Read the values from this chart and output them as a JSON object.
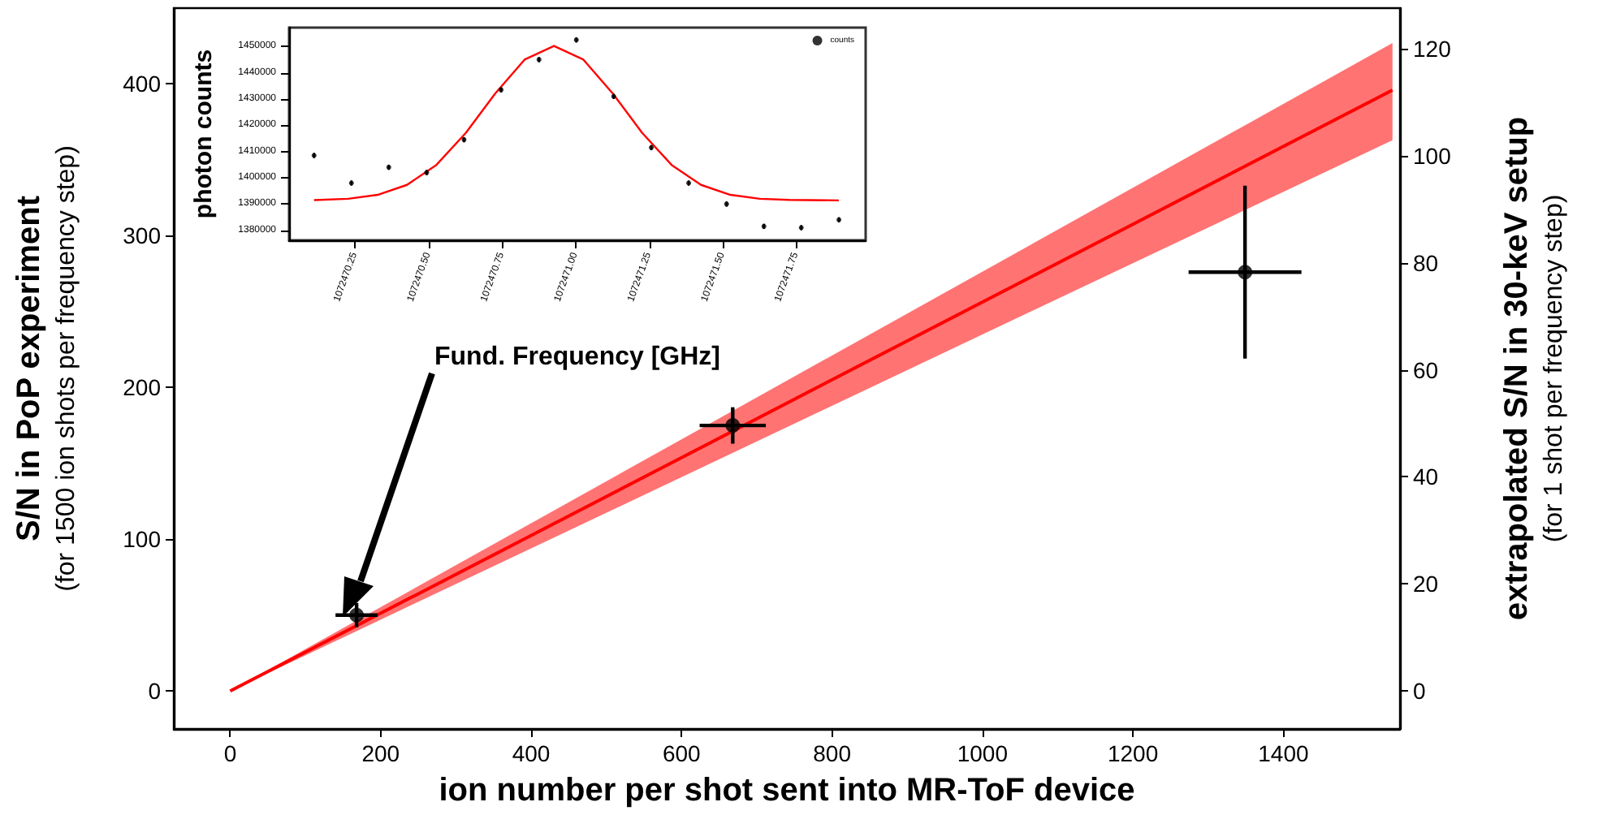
{
  "chart_data": [
    {
      "type": "scatter",
      "xlabel": "ion number per shot sent into MR-ToF device",
      "ylabel": "S/N in PoP experiment\n(for 1500 ion shots per frequency step)",
      "y2label": "extrapolated S/N in 30-keV setup\n(for 1 shot per frequency step)",
      "xlim": [
        -75,
        1555
      ],
      "xticks": [
        0,
        200,
        400,
        600,
        800,
        1000,
        1200,
        1400
      ],
      "ylim": [
        -25,
        450
      ],
      "yticks": [
        0,
        100,
        200,
        300,
        400
      ],
      "y2lim": [
        -7.1,
        127.6
      ],
      "y2ticks": [
        0,
        20,
        40,
        60,
        80,
        100,
        120
      ],
      "series": [
        {
          "type": "line",
          "color": "#ff0000",
          "x": [
            0,
            1545
          ],
          "values": [
            0,
            396
          ],
          "lower": [
            0,
            363
          ],
          "upper": [
            0,
            427
          ]
        },
        {
          "marker": "circle",
          "color": "#000000",
          "x": [
            168,
            668,
            1349
          ],
          "values": [
            50,
            175,
            276
          ],
          "errors": [
            8,
            12,
            57
          ],
          "xerrors": [
            28,
            44,
            75
          ]
        }
      ]
    },
    {
      "type": "scatter",
      "xlabel": "Fund. Frequency [GHz]",
      "ylabel": "photon counts",
      "xlim": [
        1072470.025,
        1072471.986
      ],
      "xticks": [
        1072470.25,
        {
          "value": 1072470.5,
          "label": "1072470.50"
        },
        1072470.75,
        {
          "value": 1072471,
          "label": "1072471.00"
        },
        1072471.25,
        {
          "value": 1072471.5,
          "label": "1072471.50"
        },
        1072471.75
      ],
      "ylim": [
        1376200,
        1457200
      ],
      "yticks": [
        1380000,
        1390000,
        1400000,
        1410000,
        1420000,
        1430000,
        1440000,
        1450000
      ],
      "legend": "top right",
      "series": [
        {
          "marker": "circle",
          "name": "counts",
          "color": "#000000",
          "x": [
            1072470.11,
            1072470.237,
            1072470.364,
            1072470.493,
            1072470.62,
            1072470.746,
            1072470.875,
            1072471.002,
            1072471.129,
            1072471.257,
            1072471.384,
            1072471.513,
            1072471.64,
            1072471.767,
            1072471.895
          ],
          "values": [
            1408500,
            1398000,
            1404000,
            1402000,
            1414500,
            1433500,
            1445000,
            1452500,
            1431000,
            1411500,
            1398000,
            1390000,
            1381500,
            1381000,
            1384000
          ],
          "errors": [
            1000,
            1000,
            1000,
            1000,
            1000,
            1000,
            1000,
            1000,
            1000,
            1000,
            1000,
            1000,
            1000,
            1000,
            1000
          ]
        },
        {
          "type": "line",
          "color": "#ff0000",
          "x": [
            1072470.11,
            1072470.226,
            1072470.326,
            1072470.426,
            1072470.526,
            1072470.626,
            1072470.726,
            1072470.826,
            1072470.926,
            1072471.026,
            1072471.126,
            1072471.226,
            1072471.326,
            1072471.426,
            1072471.526,
            1072471.626,
            1072471.726,
            1072471.895
          ],
          "values": [
            1391500,
            1392000,
            1393500,
            1397300,
            1404900,
            1417100,
            1432100,
            1445000,
            1450200,
            1445000,
            1432100,
            1417100,
            1404900,
            1397300,
            1393500,
            1392000,
            1391600,
            1391400
          ]
        }
      ]
    }
  ]
}
